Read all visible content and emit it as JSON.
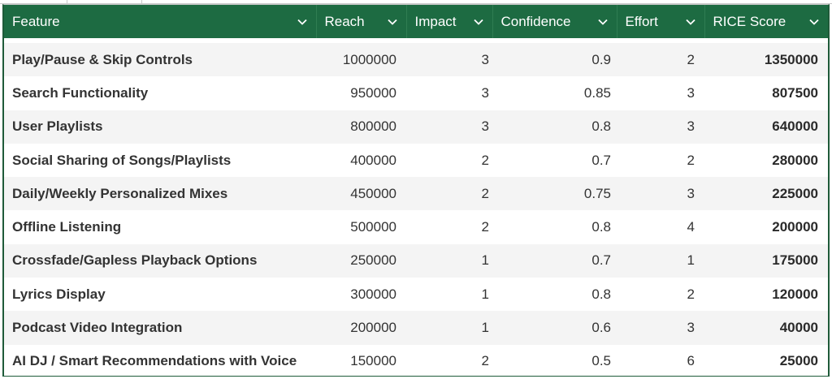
{
  "table": {
    "columns": [
      {
        "label": "Feature"
      },
      {
        "label": "Reach"
      },
      {
        "label": "Impact"
      },
      {
        "label": "Confidence"
      },
      {
        "label": "Effort"
      },
      {
        "label": "RICE Score"
      }
    ],
    "rows": [
      {
        "feature": "Play/Pause & Skip Controls",
        "reach": "1000000",
        "impact": "3",
        "confidence": "0.9",
        "effort": "2",
        "score": "1350000"
      },
      {
        "feature": "Search Functionality",
        "reach": "950000",
        "impact": "3",
        "confidence": "0.85",
        "effort": "3",
        "score": "807500"
      },
      {
        "feature": "User Playlists",
        "reach": "800000",
        "impact": "3",
        "confidence": "0.8",
        "effort": "3",
        "score": "640000"
      },
      {
        "feature": "Social Sharing of Songs/Playlists",
        "reach": "400000",
        "impact": "2",
        "confidence": "0.7",
        "effort": "2",
        "score": "280000"
      },
      {
        "feature": "Daily/Weekly Personalized Mixes",
        "reach": "450000",
        "impact": "2",
        "confidence": "0.75",
        "effort": "3",
        "score": "225000"
      },
      {
        "feature": "Offline Listening",
        "reach": "500000",
        "impact": "2",
        "confidence": "0.8",
        "effort": "4",
        "score": "200000"
      },
      {
        "feature": "Crossfade/Gapless Playback Options",
        "reach": "250000",
        "impact": "1",
        "confidence": "0.7",
        "effort": "1",
        "score": "175000"
      },
      {
        "feature": "Lyrics Display",
        "reach": "300000",
        "impact": "1",
        "confidence": "0.8",
        "effort": "2",
        "score": "120000"
      },
      {
        "feature": "Podcast Video Integration",
        "reach": "200000",
        "impact": "1",
        "confidence": "0.6",
        "effort": "3",
        "score": "40000"
      },
      {
        "feature": "AI DJ / Smart Recommendations with Voice",
        "reach": "150000",
        "impact": "2",
        "confidence": "0.5",
        "effort": "6",
        "score": "25000"
      }
    ]
  },
  "colors": {
    "header_bg": "#1d6b42",
    "header_text": "#ffffff",
    "row_alt_bg": "#f4f4f4"
  },
  "icons": {
    "sort": "chevron-down-icon"
  }
}
